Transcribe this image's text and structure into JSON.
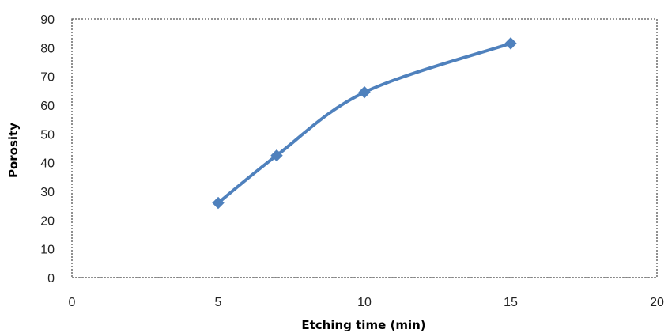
{
  "chart_data": {
    "type": "scatter",
    "title": "",
    "xlabel": "Etching time (min)",
    "ylabel": "Porosity",
    "xlim": [
      0,
      20
    ],
    "ylim": [
      0,
      90
    ],
    "xticks": [
      0,
      5,
      10,
      15,
      20
    ],
    "yticks": [
      0,
      10,
      20,
      30,
      40,
      50,
      60,
      70,
      80,
      90
    ],
    "grid": false,
    "legend": "none",
    "line_style": "smoothed line with diamond markers",
    "plot_border": "dotted",
    "series": [
      {
        "color": "#4f81bd",
        "x": [
          5,
          7,
          10,
          15
        ],
        "y": [
          26,
          42.5,
          64.5,
          81.5
        ]
      }
    ]
  }
}
